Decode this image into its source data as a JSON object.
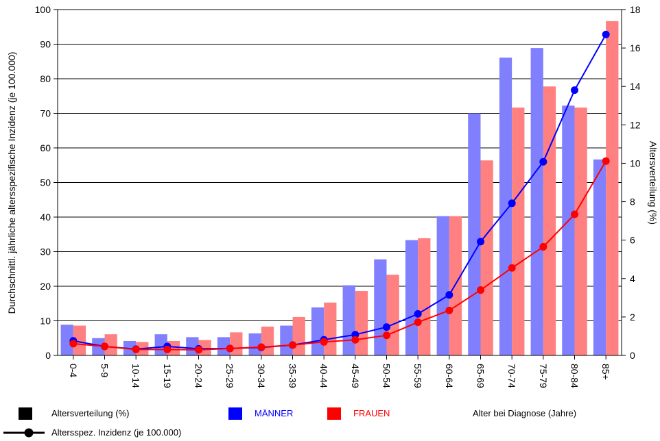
{
  "chart_data": {
    "type": "bar",
    "categories": [
      "0-4",
      "5-9",
      "10-14",
      "15-19",
      "20-24",
      "25-29",
      "30-34",
      "35-39",
      "40-44",
      "45-49",
      "50-54",
      "55-59",
      "60-64",
      "65-69",
      "70-74",
      "75-79",
      "80-84",
      "85+"
    ],
    "xlabel": "Alter bei Diagnose (Jahre)",
    "ylabel_left": "Durchschnittl. jährliche altersspezifische Inzidenz (je 100.000)",
    "ylabel_right": "Altersverteilung (%)",
    "ylim_left": [
      0,
      100
    ],
    "ylim_right": [
      0,
      18
    ],
    "yticks_left": [
      0,
      10,
      20,
      30,
      40,
      50,
      60,
      70,
      80,
      90,
      100
    ],
    "yticks_right": [
      0,
      2,
      4,
      6,
      8,
      10,
      12,
      14,
      16,
      18
    ],
    "grid": true,
    "bar_series": [
      {
        "name": "MÄNNER",
        "axis": "right",
        "color": "#8080ff",
        "values": [
          1.6,
          0.9,
          0.75,
          1.1,
          0.95,
          0.95,
          1.15,
          1.55,
          2.5,
          3.65,
          5.0,
          6.0,
          7.25,
          12.6,
          15.5,
          16.0,
          13.0,
          10.2
        ]
      },
      {
        "name": "FRAUEN",
        "axis": "right",
        "color": "#ff8080",
        "values": [
          1.55,
          1.1,
          0.7,
          0.75,
          0.8,
          1.2,
          1.5,
          2.0,
          2.75,
          3.35,
          4.2,
          6.1,
          7.25,
          10.15,
          12.9,
          14.0,
          12.9,
          17.4
        ]
      }
    ],
    "line_series": [
      {
        "name": "MÄNNER",
        "axis": "left",
        "color": "#0000ff",
        "values": [
          4.2,
          2.6,
          1.8,
          2.6,
          1.9,
          2.0,
          2.3,
          3.0,
          4.5,
          6.0,
          8.2,
          12.0,
          17.5,
          32.9,
          44.0,
          56.0,
          76.7,
          92.8
        ]
      },
      {
        "name": "FRAUEN",
        "axis": "left",
        "color": "#ff0000",
        "values": [
          3.4,
          2.6,
          1.7,
          1.7,
          1.6,
          2.0,
          2.4,
          3.0,
          3.9,
          4.5,
          5.8,
          9.6,
          13.0,
          18.9,
          25.3,
          31.4,
          40.8,
          56.2
        ]
      }
    ]
  },
  "legend": {
    "bar_label": "Altersverteilung (%)",
    "line_label": "Altersspez. Inzidenz (je 100.000)",
    "men_label": "MÄNNER",
    "women_label": "FRAUEN",
    "age_label": "Alter bei Diagnose (Jahre)",
    "men_color": "#0000ff",
    "women_color": "#ff0000"
  }
}
